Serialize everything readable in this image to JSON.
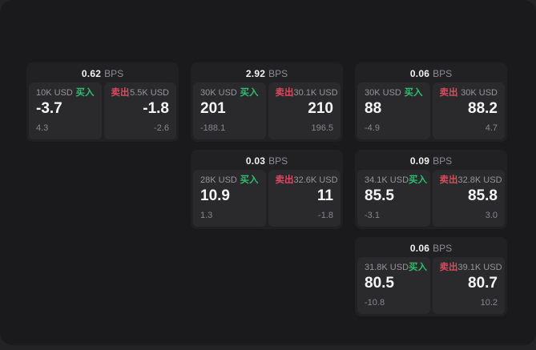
{
  "labels": {
    "unit": "BPS",
    "buy": "买入",
    "sell": "卖出"
  },
  "colors": {
    "backdrop": "#232325",
    "window": "#1a1a1c",
    "card": "#212123",
    "panel": "#2a2a2c",
    "buy_green": "#2fbd6f",
    "sell_red": "#d84b5f",
    "text_primary": "#f5f5f6",
    "text_muted": "#8e8e93"
  },
  "cards": [
    {
      "bps": "0.62",
      "buy": {
        "size": "10K USD",
        "price": "-3.7",
        "delta": "4.3"
      },
      "sell": {
        "size": "5.5K USD",
        "price": "-1.8",
        "delta": "-2.6"
      }
    },
    {
      "bps": "2.92",
      "buy": {
        "size": "30K USD",
        "price": "201",
        "delta": "-188.1"
      },
      "sell": {
        "size": "30.1K USD",
        "price": "210",
        "delta": "196.5"
      }
    },
    {
      "bps": "0.06",
      "buy": {
        "size": "30K USD",
        "price": "88",
        "delta": "-4.9"
      },
      "sell": {
        "size": "30K USD",
        "price": "88.2",
        "delta": "4.7"
      }
    },
    {
      "bps": "0.03",
      "buy": {
        "size": "28K USD",
        "price": "10.9",
        "delta": "1.3"
      },
      "sell": {
        "size": "32.6K USD",
        "price": "11",
        "delta": "-1.8"
      }
    },
    {
      "bps": "0.09",
      "buy": {
        "size": "34.1K USD",
        "price": "85.5",
        "delta": "-3.1"
      },
      "sell": {
        "size": "32.8K USD",
        "price": "85.8",
        "delta": "3.0"
      }
    },
    {
      "bps": "0.06",
      "buy": {
        "size": "31.8K USD",
        "price": "80.5",
        "delta": "-10.8"
      },
      "sell": {
        "size": "39.1K USD",
        "price": "80.7",
        "delta": "10.2"
      }
    }
  ]
}
